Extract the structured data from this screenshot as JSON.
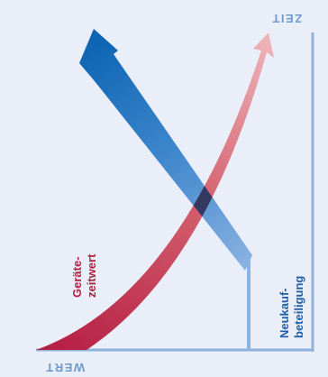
{
  "labels": {
    "zeit": "ZEIT",
    "wert": "WERT",
    "zeitwert_line1": "Geräte-",
    "zeitwert_line2": "zeitwert",
    "neukauf_line1": "Neukauf-",
    "neukauf_line2": "beteiligung"
  },
  "colors": {
    "background": "#e9eef8",
    "axis": "#8fb2dc",
    "axis_text": "#6f9ad0",
    "blue_arrow_dark": "#0a62b0",
    "blue_arrow_light": "#8cb4e2",
    "red_arrow_dark": "#b41c42",
    "red_arrow_light": "#eca8ae",
    "overlap": "#16325e",
    "text_red": "#b0203f",
    "text_blue": "#1f5fa8"
  }
}
